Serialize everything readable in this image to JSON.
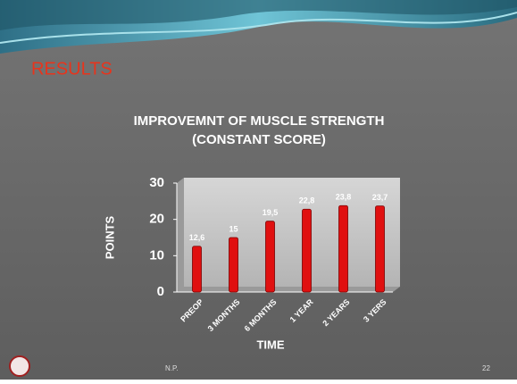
{
  "slide": {
    "heading": "RESULTS",
    "footer": "N.P.",
    "page_number": "22"
  },
  "chart_data": {
    "type": "bar",
    "title": "IMPROVEMNT OF MUSCLE STRENGTH",
    "subtitle": "(CONSTANT SCORE)",
    "x_label": "TIME",
    "y_label": "POINTS",
    "categories": [
      "PREOP",
      "3 MONTHS",
      "6 MONTHS",
      "1 YEAR",
      "2 YEARS",
      "3 YERS"
    ],
    "values": [
      12.6,
      15,
      19.5,
      22.8,
      23.8,
      23.7
    ],
    "value_labels": [
      "12,6",
      "15",
      "19,5",
      "22,8",
      "23,8",
      "23,7"
    ],
    "color": "#e01010",
    "ylim": [
      0,
      30
    ],
    "yticks": [
      0,
      10,
      20,
      30
    ],
    "grid": false
  }
}
